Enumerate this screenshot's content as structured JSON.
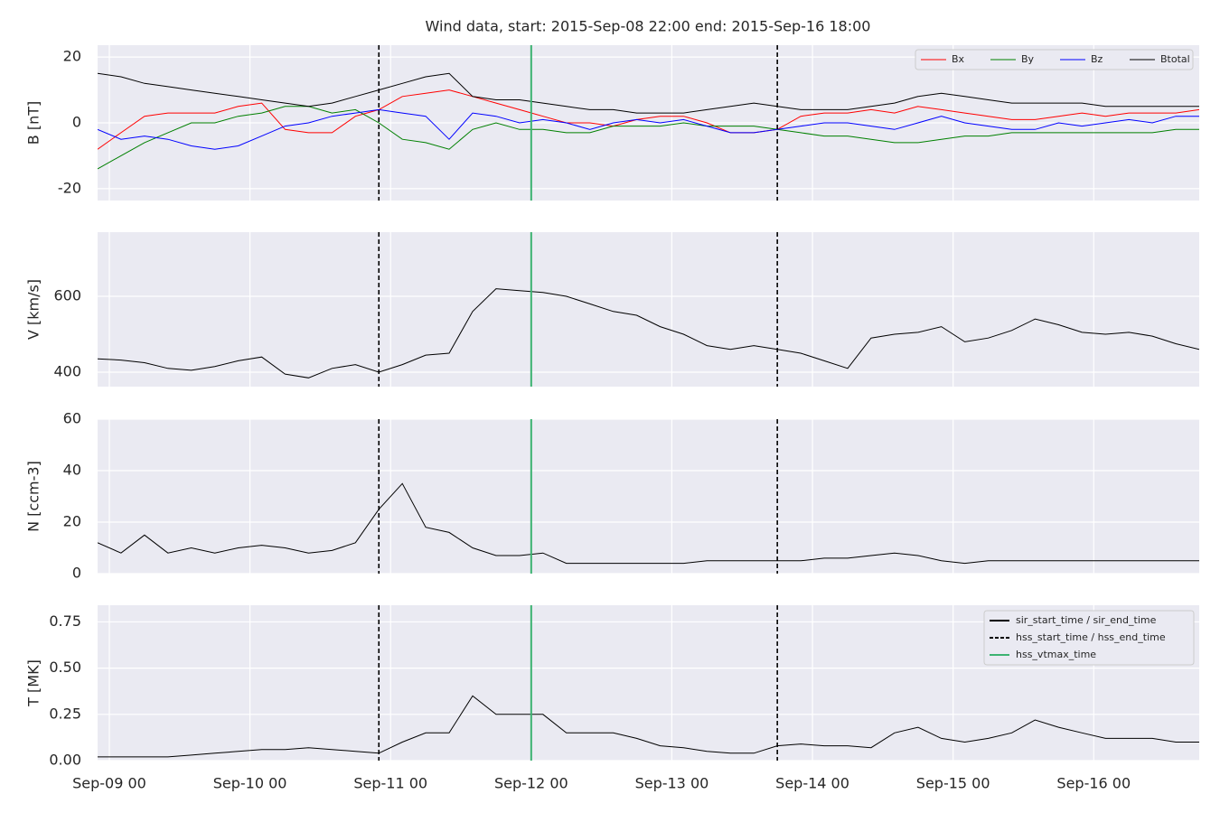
{
  "chart_data": [
    {
      "type": "line",
      "title": "Wind data, start: 2015-Sep-08 22:00  end: 2015-Sep-16 18:00",
      "ylabel": "B [nT]",
      "x": [
        "Sep-08 22",
        "Sep-09 02",
        "Sep-09 06",
        "Sep-09 10",
        "Sep-09 14",
        "Sep-09 18",
        "Sep-09 22",
        "Sep-10 02",
        "Sep-10 06",
        "Sep-10 10",
        "Sep-10 14",
        "Sep-10 18",
        "Sep-10 22",
        "Sep-11 02",
        "Sep-11 06",
        "Sep-11 10",
        "Sep-11 14",
        "Sep-11 18",
        "Sep-11 22",
        "Sep-12 02",
        "Sep-12 06",
        "Sep-12 10",
        "Sep-12 14",
        "Sep-12 18",
        "Sep-12 22",
        "Sep-13 02",
        "Sep-13 06",
        "Sep-13 10",
        "Sep-13 14",
        "Sep-13 18",
        "Sep-13 22",
        "Sep-14 02",
        "Sep-14 06",
        "Sep-14 10",
        "Sep-14 14",
        "Sep-14 18",
        "Sep-14 22",
        "Sep-15 02",
        "Sep-15 06",
        "Sep-15 10",
        "Sep-15 14",
        "Sep-15 18",
        "Sep-15 22",
        "Sep-16 02",
        "Sep-16 06",
        "Sep-16 10",
        "Sep-16 14",
        "Sep-16 18"
      ],
      "series": [
        {
          "name": "Bx",
          "color": "#ff0000",
          "values": [
            -8,
            -3,
            2,
            3,
            3,
            3,
            5,
            6,
            -2,
            -3,
            -3,
            2,
            4,
            8,
            9,
            10,
            8,
            6,
            4,
            2,
            0,
            0,
            -1,
            1,
            2,
            2,
            0,
            -3,
            -3,
            -2,
            2,
            3,
            3,
            4,
            3,
            5,
            4,
            3,
            2,
            1,
            1,
            2,
            3,
            2,
            3,
            3,
            3,
            4
          ]
        },
        {
          "name": "By",
          "color": "#008000",
          "values": [
            -14,
            -10,
            -6,
            -3,
            0,
            0,
            2,
            3,
            5,
            5,
            3,
            4,
            0,
            -5,
            -6,
            -8,
            -2,
            0,
            -2,
            -2,
            -3,
            -3,
            -1,
            -1,
            -1,
            0,
            -1,
            -1,
            -1,
            -2,
            -3,
            -4,
            -4,
            -5,
            -6,
            -6,
            -5,
            -4,
            -4,
            -3,
            -3,
            -3,
            -3,
            -3,
            -3,
            -3,
            -2,
            -2
          ]
        },
        {
          "name": "Bz",
          "color": "#0000ff",
          "values": [
            -2,
            -5,
            -4,
            -5,
            -7,
            -8,
            -7,
            -4,
            -1,
            0,
            2,
            3,
            4,
            3,
            2,
            -5,
            3,
            2,
            0,
            1,
            0,
            -2,
            0,
            1,
            0,
            1,
            -1,
            -3,
            -3,
            -2,
            -1,
            0,
            0,
            -1,
            -2,
            0,
            2,
            0,
            -1,
            -2,
            -2,
            0,
            -1,
            0,
            1,
            0,
            2,
            2
          ]
        },
        {
          "name": "Btotal",
          "color": "#000000",
          "values": [
            15,
            14,
            12,
            11,
            10,
            9,
            8,
            7,
            6,
            5,
            6,
            8,
            10,
            12,
            14,
            15,
            8,
            7,
            7,
            6,
            5,
            4,
            4,
            3,
            3,
            3,
            4,
            5,
            6,
            5,
            4,
            4,
            4,
            5,
            6,
            8,
            9,
            8,
            7,
            6,
            6,
            6,
            6,
            5,
            5,
            5,
            5,
            5
          ]
        }
      ],
      "ylim": [
        -23.6,
        23.6
      ],
      "yticks": [
        -20,
        0,
        20
      ],
      "grid": true,
      "legend": "upper right"
    },
    {
      "type": "line",
      "ylabel": "V [km/s]",
      "x": [
        "Sep-08 22",
        "Sep-09 02",
        "Sep-09 06",
        "Sep-09 10",
        "Sep-09 14",
        "Sep-09 18",
        "Sep-09 22",
        "Sep-10 02",
        "Sep-10 06",
        "Sep-10 10",
        "Sep-10 14",
        "Sep-10 18",
        "Sep-10 22",
        "Sep-11 02",
        "Sep-11 06",
        "Sep-11 10",
        "Sep-11 14",
        "Sep-11 18",
        "Sep-11 22",
        "Sep-12 02",
        "Sep-12 06",
        "Sep-12 10",
        "Sep-12 14",
        "Sep-12 18",
        "Sep-12 22",
        "Sep-13 02",
        "Sep-13 06",
        "Sep-13 10",
        "Sep-13 14",
        "Sep-13 18",
        "Sep-13 22",
        "Sep-14 02",
        "Sep-14 06",
        "Sep-14 10",
        "Sep-14 14",
        "Sep-14 18",
        "Sep-14 22",
        "Sep-15 02",
        "Sep-15 06",
        "Sep-15 10",
        "Sep-15 14",
        "Sep-15 18",
        "Sep-15 22",
        "Sep-16 02",
        "Sep-16 06",
        "Sep-16 10",
        "Sep-16 14",
        "Sep-16 18"
      ],
      "series": [
        {
          "color": "#000000",
          "values": [
            435,
            432,
            425,
            410,
            405,
            415,
            430,
            440,
            395,
            385,
            410,
            420,
            400,
            420,
            445,
            450,
            560,
            620,
            615,
            610,
            600,
            580,
            560,
            550,
            520,
            500,
            470,
            460,
            470,
            460,
            450,
            430,
            410,
            490,
            500,
            505,
            520,
            480,
            490,
            510,
            540,
            525,
            505,
            500,
            505,
            495,
            475,
            460
          ]
        }
      ],
      "ylim": [
        362,
        769
      ],
      "yticks": [
        400,
        600
      ],
      "grid": true
    },
    {
      "type": "line",
      "ylabel": "N [ccm-3]",
      "x": [
        "Sep-08 22",
        "Sep-09 02",
        "Sep-09 06",
        "Sep-09 10",
        "Sep-09 14",
        "Sep-09 18",
        "Sep-09 22",
        "Sep-10 02",
        "Sep-10 06",
        "Sep-10 10",
        "Sep-10 14",
        "Sep-10 18",
        "Sep-10 22",
        "Sep-11 02",
        "Sep-11 06",
        "Sep-11 10",
        "Sep-11 14",
        "Sep-11 18",
        "Sep-11 22",
        "Sep-12 02",
        "Sep-12 06",
        "Sep-12 10",
        "Sep-12 14",
        "Sep-12 18",
        "Sep-12 22",
        "Sep-13 02",
        "Sep-13 06",
        "Sep-13 10",
        "Sep-13 14",
        "Sep-13 18",
        "Sep-13 22",
        "Sep-14 02",
        "Sep-14 06",
        "Sep-14 10",
        "Sep-14 14",
        "Sep-14 18",
        "Sep-14 22",
        "Sep-15 02",
        "Sep-15 06",
        "Sep-15 10",
        "Sep-15 14",
        "Sep-15 18",
        "Sep-15 22",
        "Sep-16 02",
        "Sep-16 06",
        "Sep-16 10",
        "Sep-16 14",
        "Sep-16 18"
      ],
      "series": [
        {
          "color": "#000000",
          "values": [
            12,
            8,
            15,
            8,
            10,
            8,
            10,
            11,
            10,
            8,
            9,
            12,
            25,
            35,
            18,
            16,
            10,
            7,
            7,
            8,
            4,
            4,
            4,
            4,
            4,
            4,
            5,
            5,
            5,
            5,
            5,
            6,
            6,
            7,
            8,
            7,
            5,
            4,
            5,
            5,
            5,
            5,
            5,
            5,
            5,
            5,
            5,
            5
          ]
        }
      ],
      "ylim": [
        0,
        60
      ],
      "yticks": [
        0,
        20,
        40,
        60
      ],
      "grid": true
    },
    {
      "type": "line",
      "ylabel": "T [MK]",
      "x": [
        "Sep-08 22",
        "Sep-09 02",
        "Sep-09 06",
        "Sep-09 10",
        "Sep-09 14",
        "Sep-09 18",
        "Sep-09 22",
        "Sep-10 02",
        "Sep-10 06",
        "Sep-10 10",
        "Sep-10 14",
        "Sep-10 18",
        "Sep-10 22",
        "Sep-11 02",
        "Sep-11 06",
        "Sep-11 10",
        "Sep-11 14",
        "Sep-11 18",
        "Sep-11 22",
        "Sep-12 02",
        "Sep-12 06",
        "Sep-12 10",
        "Sep-12 14",
        "Sep-12 18",
        "Sep-12 22",
        "Sep-13 02",
        "Sep-13 06",
        "Sep-13 10",
        "Sep-13 14",
        "Sep-13 18",
        "Sep-13 22",
        "Sep-14 02",
        "Sep-14 06",
        "Sep-14 10",
        "Sep-14 14",
        "Sep-14 18",
        "Sep-14 22",
        "Sep-15 02",
        "Sep-15 06",
        "Sep-15 10",
        "Sep-15 14",
        "Sep-15 18",
        "Sep-15 22",
        "Sep-16 02",
        "Sep-16 06",
        "Sep-16 10",
        "Sep-16 14",
        "Sep-16 18"
      ],
      "series": [
        {
          "color": "#000000",
          "values": [
            0.02,
            0.02,
            0.02,
            0.02,
            0.03,
            0.04,
            0.05,
            0.06,
            0.06,
            0.07,
            0.06,
            0.05,
            0.04,
            0.1,
            0.15,
            0.15,
            0.35,
            0.25,
            0.25,
            0.25,
            0.15,
            0.15,
            0.15,
            0.12,
            0.08,
            0.07,
            0.05,
            0.04,
            0.04,
            0.08,
            0.09,
            0.08,
            0.08,
            0.07,
            0.15,
            0.18,
            0.12,
            0.1,
            0.12,
            0.15,
            0.22,
            0.18,
            0.15,
            0.12,
            0.12,
            0.12,
            0.1,
            0.1
          ]
        }
      ],
      "ylim": [
        0,
        0.84
      ],
      "yticks": [
        {
          "value": 0,
          "label": "0.00"
        },
        0.25,
        {
          "value": 0.5,
          "label": "0.50"
        },
        0.75
      ],
      "grid": true,
      "xlim": [
        "Sep-08 22",
        "Sep-16 18"
      ],
      "xticks": [
        "Sep-09 00",
        "Sep-10 00",
        "Sep-11 00",
        "Sep-12 00",
        "Sep-13 00",
        "Sep-14 00",
        "Sep-15 00",
        "Sep-16 00"
      ],
      "legend": "upper right",
      "events": [
        {
          "name": "sir_start_time / sir_end_time",
          "color": "#000000",
          "style": "solid",
          "x": []
        },
        {
          "name": "hss_start_time / hss_end_time",
          "color": "#000000",
          "style": "dashed",
          "x": [
            "Sep-10 22",
            "Sep-13 18"
          ]
        },
        {
          "name": "hss_vtmax_time",
          "color": "#3cb371",
          "style": "solid",
          "x": [
            "Sep-12 00"
          ]
        }
      ]
    }
  ]
}
